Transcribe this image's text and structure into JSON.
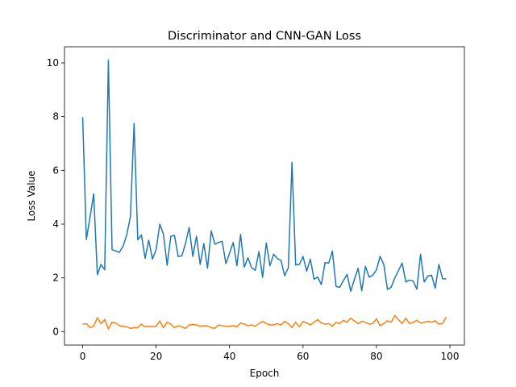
{
  "chart_data": {
    "type": "line",
    "title": "Discriminator and CNN-GAN Loss",
    "xlabel": "Epoch",
    "ylabel": "Loss Value",
    "xlim": [
      -4.95,
      103.95
    ],
    "ylim": [
      -0.5,
      10.6
    ],
    "xticks": [
      0,
      20,
      40,
      60,
      80,
      100
    ],
    "yticks": [
      0,
      2,
      4,
      6,
      8,
      10
    ],
    "grid": false,
    "legend": "none",
    "series": [
      {
        "color": "#1f77b4",
        "x": [
          0,
          1,
          2,
          3,
          4,
          5,
          6,
          7,
          8,
          9,
          10,
          11,
          12,
          13,
          14,
          15,
          16,
          17,
          18,
          19,
          20,
          21,
          22,
          23,
          24,
          25,
          26,
          27,
          28,
          29,
          30,
          31,
          32,
          33,
          34,
          35,
          36,
          37,
          38,
          39,
          40,
          41,
          42,
          43,
          44,
          45,
          46,
          47,
          48,
          49,
          50,
          51,
          52,
          53,
          54,
          55,
          56,
          57,
          58,
          59,
          60,
          61,
          62,
          63,
          64,
          65,
          66,
          67,
          68,
          69,
          70,
          71,
          72,
          73,
          74,
          75,
          76,
          77,
          78,
          79,
          80,
          81,
          82,
          83,
          84,
          85,
          86,
          87,
          88,
          89,
          90,
          91,
          92,
          93,
          94,
          95,
          96,
          97,
          98,
          99
        ],
        "values": [
          7.98,
          3.43,
          4.25,
          5.13,
          2.12,
          2.5,
          2.3,
          10.1,
          3.05,
          3.0,
          2.95,
          3.18,
          3.6,
          4.28,
          7.75,
          3.42,
          3.6,
          2.73,
          3.4,
          2.7,
          3.05,
          4.0,
          3.62,
          2.47,
          3.55,
          3.58,
          2.8,
          2.82,
          3.28,
          3.88,
          2.8,
          3.55,
          2.5,
          3.28,
          2.36,
          3.75,
          3.25,
          3.32,
          3.36,
          2.53,
          2.92,
          3.32,
          2.45,
          3.62,
          2.4,
          2.75,
          2.38,
          2.28,
          2.98,
          2.02,
          3.3,
          2.45,
          2.88,
          2.72,
          2.65,
          2.08,
          2.38,
          6.3,
          2.48,
          2.5,
          2.8,
          2.25,
          2.7,
          1.95,
          2.03,
          1.75,
          2.57,
          2.55,
          3.0,
          1.68,
          1.65,
          1.9,
          2.13,
          1.5,
          1.95,
          2.36,
          1.52,
          2.43,
          2.03,
          2.1,
          2.3,
          2.8,
          2.5,
          1.57,
          1.65,
          2.0,
          2.27,
          2.55,
          1.85,
          1.92,
          1.88,
          1.58,
          2.88,
          1.85,
          2.07,
          2.1,
          1.62,
          2.5,
          1.97,
          1.96
        ]
      },
      {
        "color": "#ff7f0e",
        "x": [
          0,
          1,
          2,
          3,
          4,
          5,
          6,
          7,
          8,
          9,
          10,
          11,
          12,
          13,
          14,
          15,
          16,
          17,
          18,
          19,
          20,
          21,
          22,
          23,
          24,
          25,
          26,
          27,
          28,
          29,
          30,
          31,
          32,
          33,
          34,
          35,
          36,
          37,
          38,
          39,
          40,
          41,
          42,
          43,
          44,
          45,
          46,
          47,
          48,
          49,
          50,
          51,
          52,
          53,
          54,
          55,
          56,
          57,
          58,
          59,
          60,
          61,
          62,
          63,
          64,
          65,
          66,
          67,
          68,
          69,
          70,
          71,
          72,
          73,
          74,
          75,
          76,
          77,
          78,
          79,
          80,
          81,
          82,
          83,
          84,
          85,
          86,
          87,
          88,
          89,
          90,
          91,
          92,
          93,
          94,
          95,
          96,
          97,
          98,
          99
        ],
        "values": [
          0.28,
          0.3,
          0.15,
          0.2,
          0.52,
          0.3,
          0.45,
          0.1,
          0.35,
          0.32,
          0.22,
          0.2,
          0.18,
          0.12,
          0.15,
          0.15,
          0.28,
          0.18,
          0.2,
          0.18,
          0.2,
          0.4,
          0.15,
          0.35,
          0.28,
          0.15,
          0.22,
          0.18,
          0.12,
          0.25,
          0.26,
          0.25,
          0.2,
          0.22,
          0.22,
          0.15,
          0.12,
          0.25,
          0.22,
          0.2,
          0.2,
          0.22,
          0.18,
          0.32,
          0.28,
          0.22,
          0.25,
          0.2,
          0.3,
          0.38,
          0.3,
          0.25,
          0.25,
          0.3,
          0.25,
          0.38,
          0.3,
          0.15,
          0.35,
          0.18,
          0.38,
          0.32,
          0.25,
          0.35,
          0.45,
          0.32,
          0.28,
          0.3,
          0.2,
          0.35,
          0.3,
          0.42,
          0.35,
          0.5,
          0.4,
          0.3,
          0.38,
          0.35,
          0.28,
          0.3,
          0.48,
          0.22,
          0.3,
          0.4,
          0.35,
          0.6,
          0.45,
          0.3,
          0.5,
          0.3,
          0.35,
          0.42,
          0.32,
          0.35,
          0.38,
          0.35,
          0.4,
          0.28,
          0.3,
          0.55
        ]
      }
    ]
  }
}
